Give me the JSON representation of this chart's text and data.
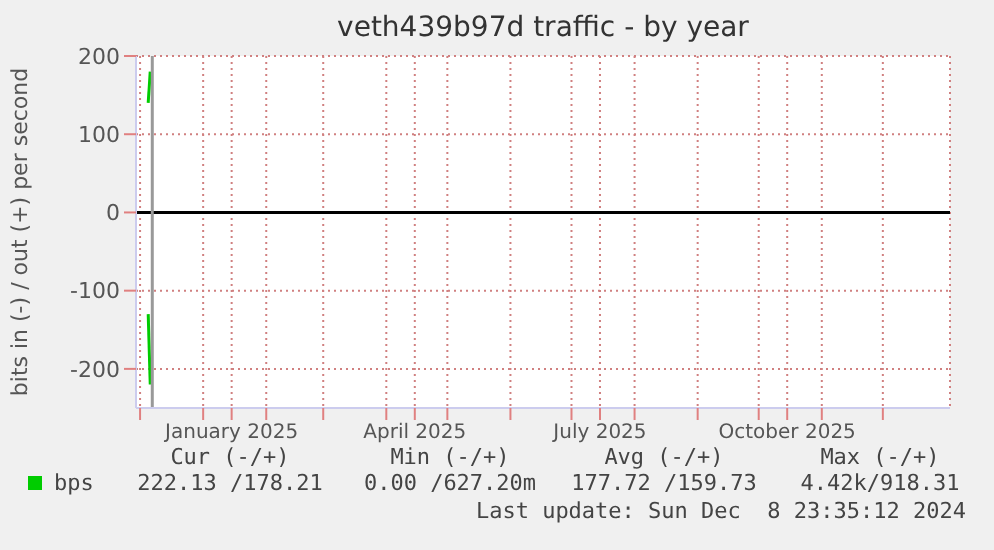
{
  "chart_data": {
    "type": "line",
    "title": "veth439b97d traffic - by year",
    "ylabel": "bits in (-) / out (+) per second",
    "xlim": [
      "2024-11-29",
      "2026-01-03"
    ],
    "xticks": [
      {
        "value": "2024-12-01",
        "label": null
      },
      {
        "value": "2025-01-01",
        "label": null
      },
      {
        "value": "2025-01-15",
        "label": "January 2025"
      },
      {
        "value": "2025-02-01",
        "label": null
      },
      {
        "value": "2025-03-01",
        "label": null
      },
      {
        "value": "2025-04-01",
        "label": null
      },
      {
        "value": "2025-04-15",
        "label": "April 2025"
      },
      {
        "value": "2025-05-01",
        "label": null
      },
      {
        "value": "2025-06-01",
        "label": null
      },
      {
        "value": "2025-07-01",
        "label": null
      },
      {
        "value": "2025-07-15",
        "label": "July 2025"
      },
      {
        "value": "2025-08-01",
        "label": null
      },
      {
        "value": "2025-09-01",
        "label": null
      },
      {
        "value": "2025-10-01",
        "label": null
      },
      {
        "value": "2025-10-15",
        "label": "October 2025"
      },
      {
        "value": "2025-11-01",
        "label": null
      },
      {
        "value": "2025-12-01",
        "label": null
      }
    ],
    "ylim": [
      -250,
      200
    ],
    "yticks": [
      -200,
      -100,
      0,
      100,
      200
    ],
    "series": [
      {
        "name": "bps",
        "color": "#00cc00",
        "x": [
          "2024-12-05",
          "2024-12-06"
        ],
        "values": [
          140,
          180
        ]
      },
      {
        "color": "#00cc00",
        "x": [
          "2024-12-05",
          "2024-12-06"
        ],
        "values": [
          -130,
          -220
        ]
      }
    ],
    "ref_lines": [
      {
        "axis": "y",
        "value": 0,
        "color": "#000000"
      },
      {
        "axis": "x",
        "value": "2024-12-07",
        "color": "#999999"
      }
    ],
    "grid": true,
    "legend": "bottom",
    "annotations": [
      "Cur (-/+)",
      "Min (-/+)",
      "Avg (-/+)",
      "Max (-/+)",
      "222.13 /178.21",
      "0.00 /627.20m",
      "177.72 /159.73",
      "4.42k/918.31",
      "Last update: Sun Dec  8 23:35:12 2024"
    ]
  }
}
